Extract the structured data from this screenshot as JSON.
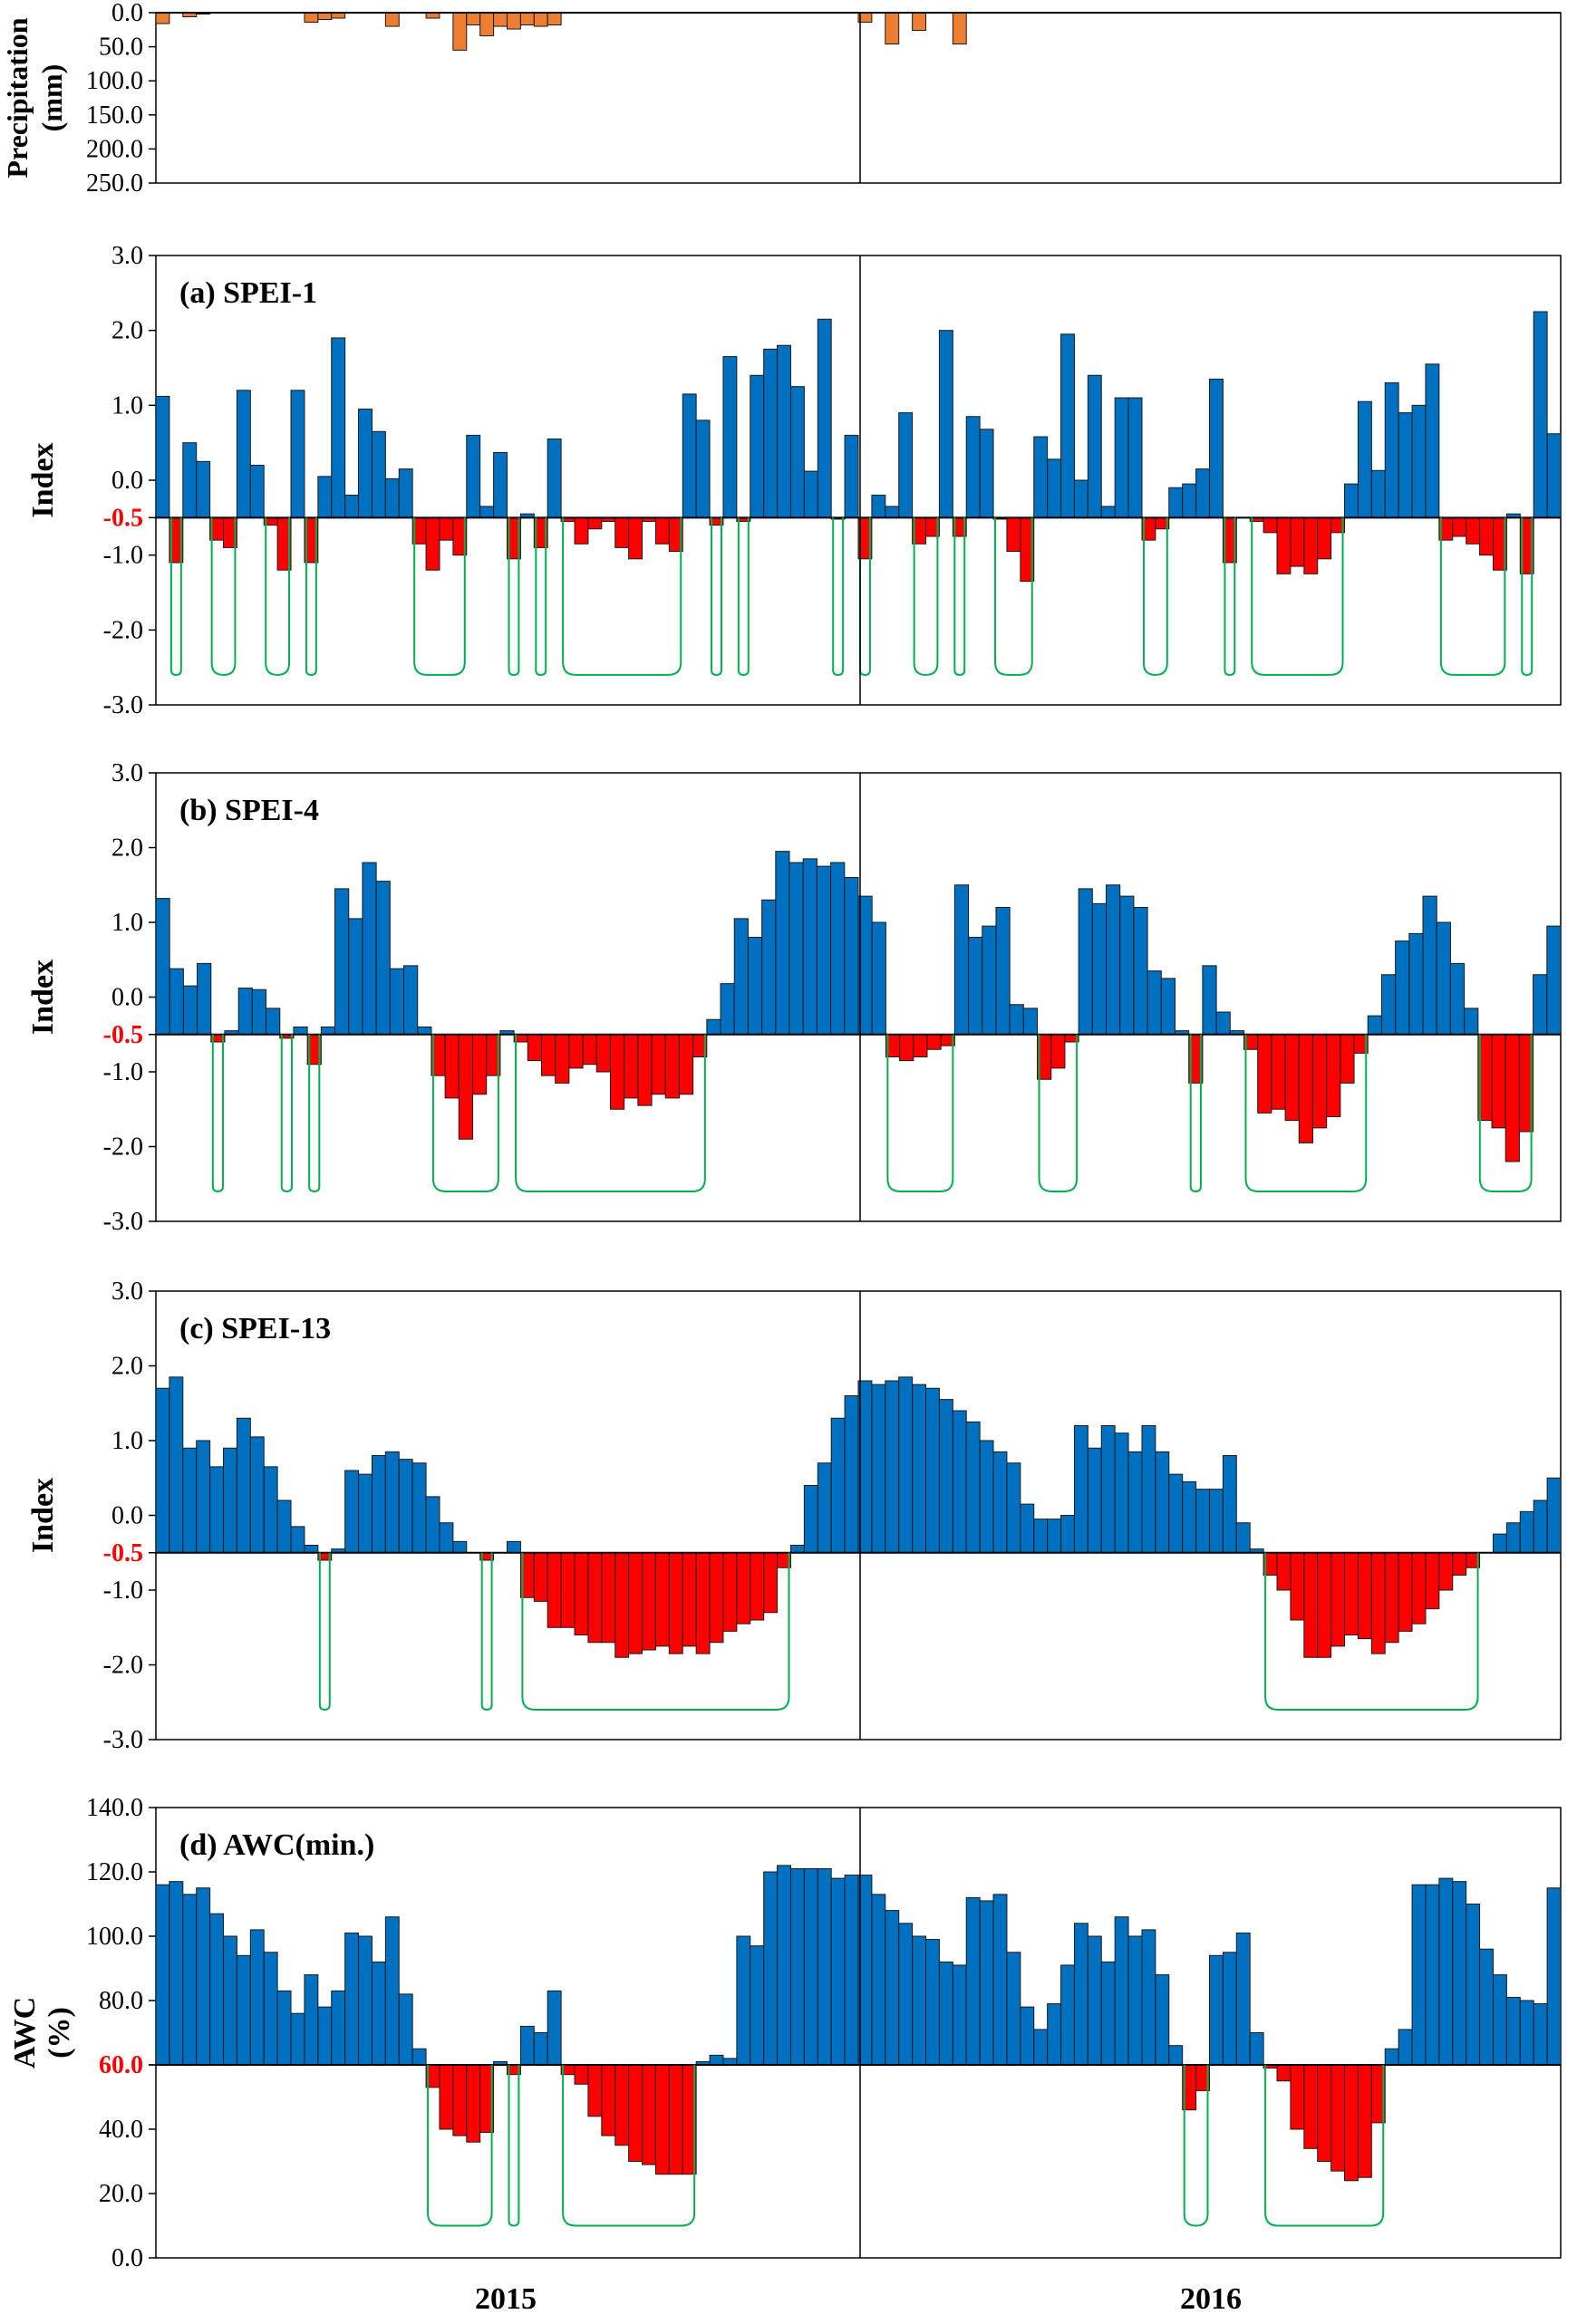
{
  "colors": {
    "precip": "#ED7D31",
    "wet": "#0070C0",
    "dry": "#FF0000",
    "threshold": "#FF0000",
    "drought_line": "#00B050",
    "axis": "#000000"
  },
  "years": [
    "2015",
    "2016"
  ],
  "chart_data": [
    {
      "type": "bar",
      "id": "precip",
      "title": "",
      "ylabel": "Precipitation (mm)",
      "ylabel_lines": [
        "Precipitation",
        "(mm)"
      ],
      "ylim": [
        0,
        250
      ],
      "y_inverted": true,
      "yticks": [
        "0.0",
        "50.0",
        "100.0",
        "150.0",
        "200.0",
        "250.0"
      ],
      "x": "Weekly steps, Jan 2015 – Dec 2016 (104 bars)",
      "values": [
        16,
        0,
        6,
        2,
        0,
        0,
        0,
        0,
        0,
        0,
        0,
        14,
        10,
        8,
        0,
        0,
        0,
        20,
        0,
        0,
        8,
        0,
        55,
        18,
        34,
        20,
        24,
        18,
        20,
        18,
        0,
        0,
        0,
        0,
        0,
        0,
        0,
        0,
        0,
        0,
        0,
        0,
        0,
        0,
        0,
        0,
        0,
        0,
        0,
        0,
        0,
        0,
        14,
        0,
        46,
        0,
        26,
        0,
        0,
        46,
        0,
        0,
        0,
        0,
        0,
        0,
        0,
        0,
        0,
        0,
        0,
        0,
        0,
        0,
        0,
        0,
        0,
        0,
        0,
        0,
        0,
        0,
        0,
        0,
        0,
        0,
        0,
        0,
        0,
        0,
        0,
        0,
        0,
        0,
        0,
        0,
        0,
        0,
        0,
        0,
        0,
        0,
        0,
        0
      ]
    },
    {
      "type": "bar",
      "id": "spei1",
      "title": "(a) SPEI-1",
      "ylabel": "Index",
      "ylim": [
        -3,
        3
      ],
      "yticks": [
        "-3.0",
        "-2.0",
        "-1.0",
        "0.0",
        "1.0",
        "2.0",
        "3.0"
      ],
      "threshold": -0.5,
      "threshold_label": "-0.5",
      "drought_line_level": -2.6,
      "values": [
        1.12,
        -1.1,
        0.5,
        0.25,
        -0.8,
        -0.9,
        1.2,
        0.2,
        -0.6,
        -1.2,
        1.2,
        -1.1,
        0.05,
        1.9,
        -0.2,
        0.95,
        0.65,
        0.02,
        0.15,
        -0.85,
        -1.2,
        -0.8,
        -1.0,
        0.6,
        -0.35,
        0.37,
        -1.05,
        -0.45,
        -0.9,
        0.55,
        -0.55,
        -0.85,
        -0.65,
        -0.55,
        -0.9,
        -1.05,
        -0.55,
        -0.85,
        -0.95,
        1.15,
        0.8,
        -0.6,
        1.65,
        -0.55,
        1.4,
        1.75,
        1.8,
        1.25,
        0.12,
        2.15,
        -0.52,
        0.6,
        -1.05,
        -0.2,
        -0.35,
        0.9,
        -0.85,
        -0.75,
        2.0,
        -0.75,
        0.85,
        0.68,
        -0.52,
        -0.95,
        -1.35,
        0.58,
        0.28,
        1.95,
        0.0,
        1.4,
        -0.35,
        1.1,
        1.1,
        -0.8,
        -0.65,
        -0.1,
        -0.05,
        0.15,
        1.35,
        -1.1,
        -0.5,
        -0.55,
        -0.7,
        -1.25,
        -1.15,
        -1.25,
        -1.05,
        -0.7,
        -0.05,
        1.05,
        0.13,
        1.3,
        0.9,
        1.0,
        1.55,
        -0.8,
        -0.75,
        -0.85,
        -1.0,
        -1.2,
        -0.45,
        -1.25,
        2.25,
        0.62
      ]
    },
    {
      "type": "bar",
      "id": "spei4",
      "title": "(b) SPEI-4",
      "ylabel": "Index",
      "ylim": [
        -3,
        3
      ],
      "yticks": [
        "-3.0",
        "-2.0",
        "-1.0",
        "0.0",
        "1.0",
        "2.0",
        "3.0"
      ],
      "threshold": -0.5,
      "threshold_label": "-0.5",
      "drought_line_level": -2.6,
      "values": [
        1.32,
        0.38,
        0.15,
        0.45,
        -0.6,
        -0.45,
        0.12,
        0.1,
        -0.15,
        -0.55,
        -0.4,
        -0.9,
        -0.4,
        1.45,
        1.05,
        1.8,
        1.55,
        0.38,
        0.42,
        -0.4,
        -1.05,
        -1.35,
        -1.9,
        -1.3,
        -1.05,
        -0.45,
        -0.6,
        -0.85,
        -1.05,
        -1.15,
        -0.95,
        -0.9,
        -1.0,
        -1.5,
        -1.35,
        -1.45,
        -1.3,
        -1.35,
        -1.3,
        -0.8,
        -0.3,
        0.18,
        1.05,
        0.8,
        1.3,
        1.95,
        1.8,
        1.85,
        1.75,
        1.8,
        1.6,
        1.35,
        1.0,
        -0.8,
        -0.85,
        -0.8,
        -0.7,
        -0.65,
        1.5,
        0.8,
        0.95,
        1.2,
        -0.1,
        -0.15,
        -1.1,
        -0.95,
        -0.6,
        1.45,
        1.25,
        1.5,
        1.35,
        1.2,
        0.35,
        0.25,
        -0.45,
        -1.15,
        0.42,
        -0.2,
        -0.45,
        -0.7,
        -1.55,
        -1.5,
        -1.65,
        -1.95,
        -1.75,
        -1.6,
        -1.15,
        -0.75,
        -0.25,
        0.3,
        0.75,
        0.85,
        1.35,
        1.0,
        0.45,
        -0.15,
        -1.65,
        -1.75,
        -2.2,
        -1.8,
        0.3,
        0.95
      ]
    },
    {
      "type": "bar",
      "id": "spei13",
      "title": "(c) SPEI-13",
      "ylabel": "Index",
      "ylim": [
        -3,
        3
      ],
      "yticks": [
        "-3.0",
        "-2.0",
        "-1.0",
        "0.0",
        "1.0",
        "2.0",
        "3.0"
      ],
      "threshold": -0.5,
      "threshold_label": "-0.5",
      "drought_line_level": -2.6,
      "values": [
        1.7,
        1.85,
        0.9,
        1.0,
        0.65,
        0.9,
        1.3,
        1.05,
        0.65,
        0.2,
        -0.15,
        -0.4,
        -0.6,
        -0.45,
        0.6,
        0.55,
        0.8,
        0.85,
        0.75,
        0.7,
        0.25,
        -0.1,
        -0.35,
        -0.5,
        -0.6,
        -0.5,
        -0.35,
        -1.1,
        -1.15,
        -1.5,
        -1.5,
        -1.6,
        -1.7,
        -1.7,
        -1.9,
        -1.85,
        -1.8,
        -1.75,
        -1.85,
        -1.75,
        -1.85,
        -1.7,
        -1.55,
        -1.45,
        -1.4,
        -1.3,
        -0.7,
        -0.4,
        0.4,
        0.7,
        1.3,
        1.6,
        1.8,
        1.75,
        1.8,
        1.85,
        1.75,
        1.7,
        1.55,
        1.4,
        1.25,
        1.0,
        0.85,
        0.7,
        0.15,
        -0.05,
        -0.05,
        0.0,
        1.2,
        0.9,
        1.2,
        1.1,
        0.85,
        1.2,
        0.85,
        0.55,
        0.45,
        0.35,
        0.35,
        0.8,
        -0.1,
        -0.45,
        -0.8,
        -1.0,
        -1.4,
        -1.9,
        -1.9,
        -1.75,
        -1.6,
        -1.65,
        -1.85,
        -1.7,
        -1.55,
        -1.45,
        -1.25,
        -1.0,
        -0.8,
        -0.7,
        -0.5,
        -0.25,
        -0.1,
        0.05,
        0.2,
        0.5
      ]
    },
    {
      "type": "bar",
      "id": "awc",
      "title": "(d) AWC(min.)",
      "ylabel": "AWC (%)",
      "ylabel_lines": [
        "AWC",
        "(%)"
      ],
      "ylim": [
        0,
        140
      ],
      "yticks": [
        "0.0",
        "20.0",
        "40.0",
        "60.0",
        "80.0",
        "100.0",
        "120.0",
        "140.0"
      ],
      "threshold": 60,
      "threshold_label": "60.0",
      "drought_line_level": 10,
      "values": [
        116,
        117,
        113,
        115,
        107,
        100,
        94,
        102,
        95,
        83,
        76,
        88,
        78,
        83,
        101,
        100,
        92,
        106,
        82,
        65,
        53,
        40,
        38,
        36,
        39,
        61,
        57,
        72,
        70,
        83,
        57,
        54,
        44,
        38,
        35,
        30,
        29,
        26,
        26,
        26,
        61,
        63,
        62,
        100,
        97,
        120,
        122,
        121,
        121,
        121,
        118,
        119,
        119,
        113,
        108,
        104,
        100,
        99,
        92,
        91,
        112,
        111,
        113,
        95,
        78,
        71,
        79,
        91,
        104,
        100,
        92,
        106,
        100,
        102,
        88,
        66,
        46,
        52,
        94,
        95,
        101,
        70,
        59,
        55,
        40,
        34,
        30,
        27,
        24,
        25,
        42,
        65,
        71,
        116,
        116,
        118,
        117,
        110,
        96,
        88,
        81,
        80,
        79,
        115
      ]
    }
  ]
}
